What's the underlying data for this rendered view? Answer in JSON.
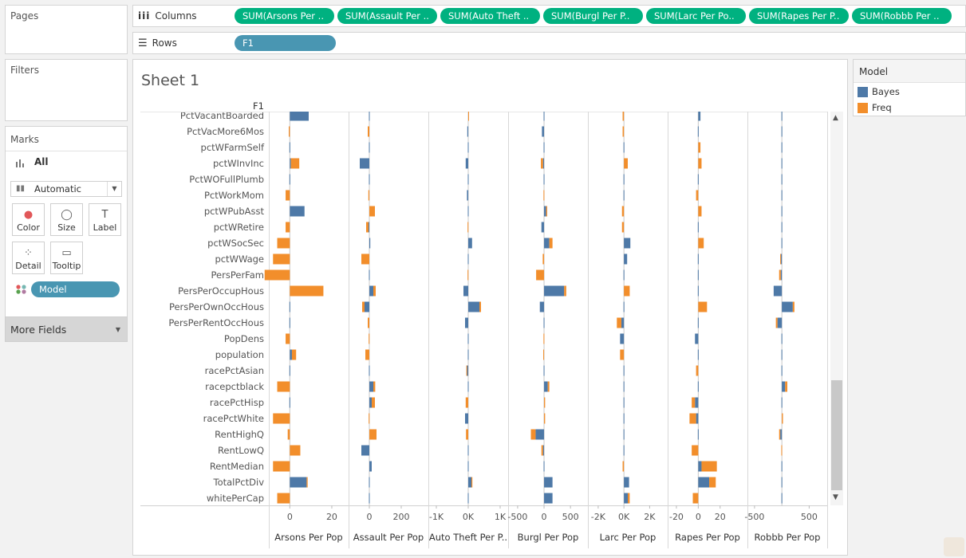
{
  "pages": {
    "title": "Pages"
  },
  "filters": {
    "title": "Filters"
  },
  "marks": {
    "title": "Marks",
    "all_label": "All",
    "mark_type": "Automatic",
    "buttons": [
      {
        "label": "Color",
        "icon": "color-icon"
      },
      {
        "label": "Size",
        "icon": "size-icon"
      },
      {
        "label": "Label",
        "icon": "label-icon"
      },
      {
        "label": "Detail",
        "icon": "detail-icon"
      },
      {
        "label": "Tooltip",
        "icon": "tooltip-icon"
      }
    ],
    "color_field": "Model"
  },
  "more_fields": {
    "label": "More Fields"
  },
  "columns_shelf": {
    "label": "Columns",
    "pills": [
      "SUM(Arsons Per ..",
      "SUM(Assault Per ..",
      "SUM(Auto Theft ..",
      "SUM(Burgl Per P..",
      "SUM(Larc Per Po..",
      "SUM(Rapes Per P..",
      "SUM(Robbb Per .."
    ]
  },
  "rows_shelf": {
    "label": "Rows",
    "pills": [
      "F1"
    ]
  },
  "sheet": {
    "title": "Sheet 1",
    "row_header": "F1"
  },
  "legend": {
    "title": "Model",
    "items": [
      {
        "label": "Bayes",
        "color": "#4e79a7"
      },
      {
        "label": "Freq",
        "color": "#f28e2b"
      }
    ]
  },
  "chart_data": {
    "type": "bar",
    "orientation": "horizontal",
    "stacked": true,
    "categories": [
      "PctVacantBoarded",
      "PctVacMore6Mos",
      "pctWFarmSelf",
      "pctWInvInc",
      "PctWOFullPlumb",
      "PctWorkMom",
      "pctWPubAsst",
      "pctWRetire",
      "pctWSocSec",
      "pctWWage",
      "PersPerFam",
      "PersPerOccupHous",
      "PersPerOwnOccHous",
      "PersPerRentOccHous",
      "PopDens",
      "population",
      "racePctAsian",
      "racepctblack",
      "racePctHisp",
      "racePctWhite",
      "RentHighQ",
      "RentLowQ",
      "RentMedian",
      "TotalPctDiv",
      "whitePerCap"
    ],
    "series_colors": {
      "Bayes": "#4e79a7",
      "Freq": "#f28e2b"
    },
    "panels": [
      {
        "title": "Arsons Per Pop",
        "ticks": [
          {
            "v": 0,
            "t": "0"
          },
          {
            "v": 20,
            "t": "20"
          }
        ],
        "xlim": [
          -10,
          28
        ],
        "bayes": [
          9,
          0,
          0,
          0.5,
          0,
          0,
          7,
          0,
          0,
          0,
          0,
          0,
          0,
          0,
          0,
          1,
          0,
          0,
          0,
          0,
          0,
          0,
          0,
          8,
          0
        ],
        "freq": [
          0,
          -0.5,
          0,
          4,
          0,
          -2,
          0,
          -2,
          -6,
          -8,
          -12,
          16,
          0,
          0,
          -2,
          2,
          0,
          -6,
          0,
          -8,
          -1,
          5,
          -8,
          0.5,
          -6
        ]
      },
      {
        "title": "Assault Per Pop",
        "ticks": [
          {
            "v": 0,
            "t": "0"
          },
          {
            "v": 200,
            "t": "200"
          }
        ],
        "xlim": [
          -130,
          370
        ],
        "bayes": [
          0,
          0,
          0,
          -60,
          0,
          0,
          0,
          -5,
          6,
          0,
          0,
          25,
          -30,
          0,
          0,
          0,
          0,
          25,
          15,
          0,
          0,
          -50,
          15,
          0,
          0
        ],
        "freq": [
          0,
          -10,
          0,
          0,
          0,
          -6,
          35,
          -15,
          0,
          -50,
          0,
          15,
          -15,
          -10,
          -4,
          -25,
          0,
          12,
          20,
          -4,
          45,
          0,
          0,
          0,
          0
        ]
      },
      {
        "title": "Auto Theft Per P..",
        "ticks": [
          {
            "v": -1000,
            "t": "-1K"
          },
          {
            "v": 0,
            "t": "0K"
          },
          {
            "v": 1000,
            "t": "1K"
          }
        ],
        "xlim": [
          -1250,
          1250
        ],
        "bayes": [
          0,
          -30,
          0,
          -80,
          0,
          -40,
          0,
          0,
          120,
          0,
          0,
          -150,
          350,
          -100,
          0,
          0,
          -50,
          0,
          0,
          -100,
          0,
          0,
          0,
          100,
          0
        ],
        "freq": [
          20,
          0,
          0,
          0,
          0,
          0,
          0,
          -20,
          0,
          0,
          -20,
          0,
          50,
          0,
          0,
          0,
          -10,
          0,
          -80,
          0,
          -70,
          0,
          0,
          30,
          0
        ]
      },
      {
        "title": "Burgl Per Pop",
        "ticks": [
          {
            "v": -500,
            "t": "-500"
          },
          {
            "v": 0,
            "t": "0"
          },
          {
            "v": 500,
            "t": "500"
          }
        ],
        "xlim": [
          -680,
          830
        ],
        "bayes": [
          0,
          -40,
          0,
          -20,
          0,
          0,
          40,
          -50,
          100,
          0,
          0,
          380,
          -80,
          0,
          0,
          0,
          0,
          70,
          0,
          0,
          -160,
          -20,
          0,
          160,
          160
        ],
        "freq": [
          0,
          0,
          0,
          -40,
          0,
          -10,
          20,
          0,
          60,
          -25,
          -150,
          40,
          0,
          0,
          -10,
          -15,
          0,
          30,
          20,
          20,
          -90,
          -30,
          0,
          0,
          0
        ]
      },
      {
        "title": "Larc Per Pop",
        "ticks": [
          {
            "v": -2000,
            "t": "-2K"
          },
          {
            "v": 0,
            "t": "0K"
          },
          {
            "v": 2000,
            "t": "2K"
          }
        ],
        "xlim": [
          -2800,
          3400
        ],
        "bayes": [
          0,
          0,
          0,
          0,
          0,
          0,
          0,
          0,
          500,
          250,
          0,
          0,
          0,
          -200,
          -300,
          0,
          0,
          0,
          0,
          0,
          0,
          0,
          0,
          400,
          300
        ],
        "freq": [
          -100,
          -100,
          0,
          300,
          0,
          0,
          -150,
          -150,
          0,
          0,
          0,
          450,
          0,
          -350,
          0,
          -300,
          0,
          0,
          0,
          0,
          0,
          0,
          -100,
          0,
          150
        ]
      },
      {
        "title": "Rapes Per Pop",
        "ticks": [
          {
            "v": -20,
            "t": "-20"
          },
          {
            "v": 0,
            "t": "0"
          },
          {
            "v": 20,
            "t": "20"
          }
        ],
        "xlim": [
          -28,
          45
        ],
        "bayes": [
          2,
          0,
          0,
          0,
          0,
          0,
          0,
          0,
          0,
          0,
          0,
          0,
          0,
          0,
          -3,
          0,
          0,
          0,
          -3,
          -2,
          0,
          0,
          3,
          10,
          0
        ],
        "freq": [
          0,
          0,
          2,
          3,
          0,
          -2,
          3,
          0,
          5,
          0,
          0,
          0,
          8,
          0,
          0,
          0,
          -2,
          0,
          -3,
          -6,
          0,
          -6,
          14,
          6,
          -5
        ]
      },
      {
        "title": "Robbb Per Pop",
        "ticks": [
          {
            "v": -500,
            "t": "-500"
          },
          {
            "v": 500,
            "t": "500"
          }
        ],
        "xlim": [
          -630,
          830
        ],
        "bayes": [
          0,
          0,
          0,
          0,
          0,
          0,
          0,
          0,
          0,
          -20,
          -20,
          -150,
          200,
          -80,
          0,
          0,
          0,
          60,
          0,
          0,
          -30,
          0,
          0,
          0,
          0
        ],
        "freq": [
          0,
          0,
          0,
          0,
          0,
          0,
          0,
          0,
          0,
          -10,
          -30,
          0,
          30,
          -30,
          0,
          0,
          0,
          40,
          0,
          20,
          -20,
          -10,
          0,
          0,
          0
        ]
      }
    ]
  }
}
